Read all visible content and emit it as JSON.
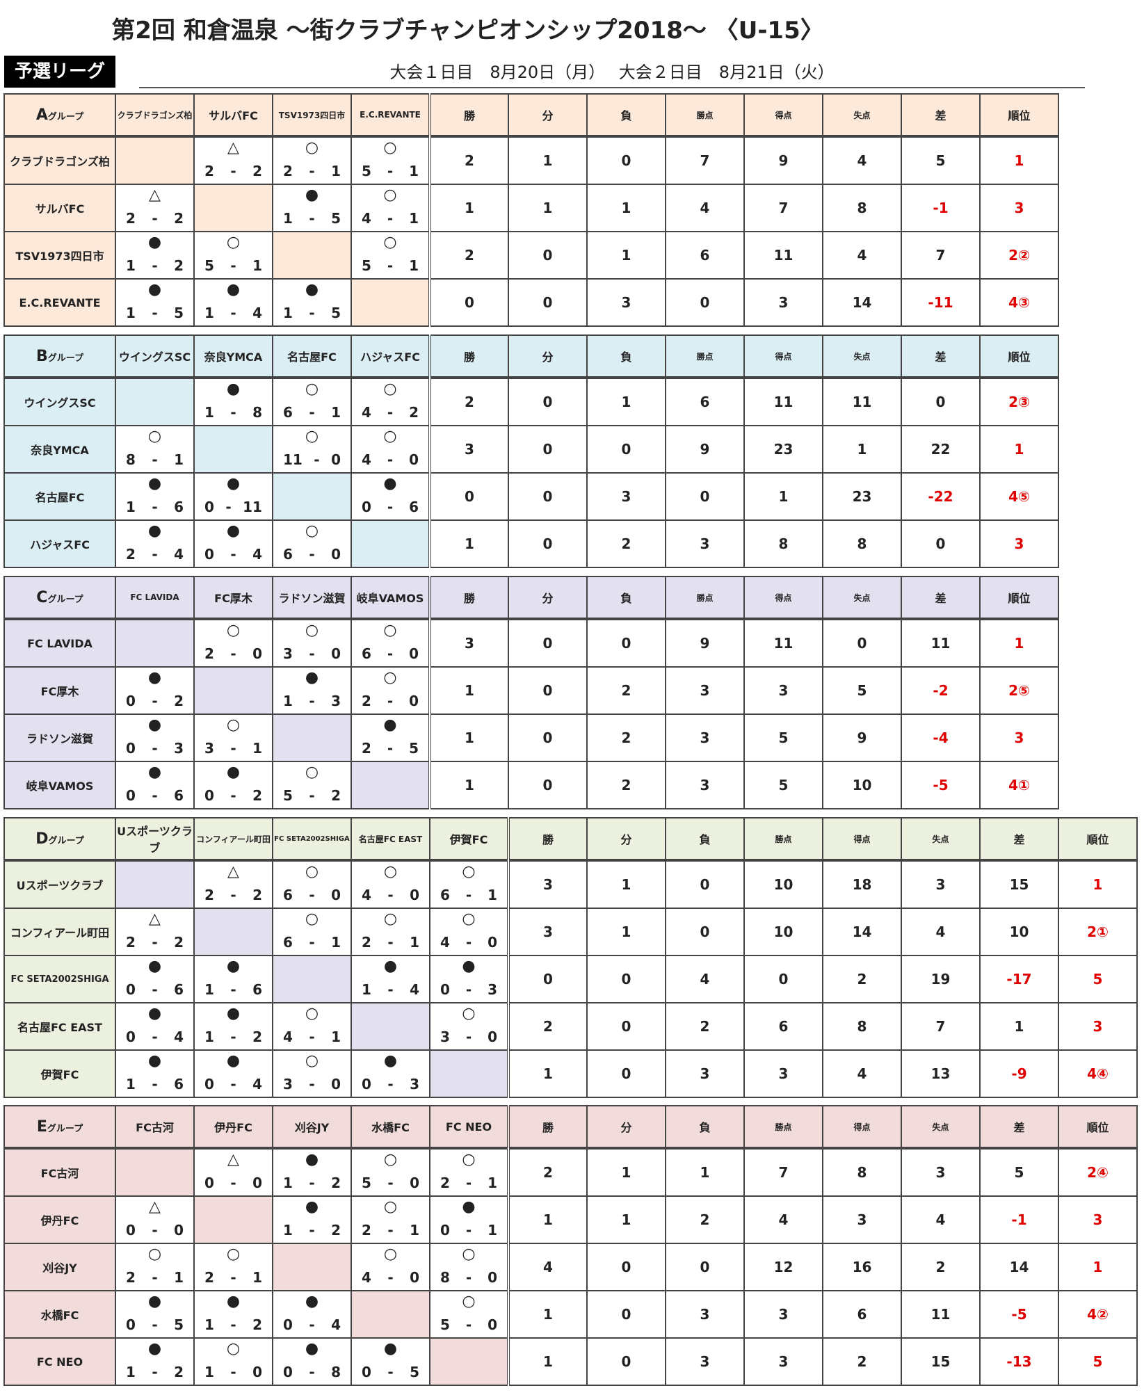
{
  "title": "第2回 和倉温泉 ～街クラブチャンピオンシップ2018～ 〈U-15〉",
  "stage": "予選リーグ",
  "dates": "大会１日目　8月20日（月）　 大会２日目　8月21日（火）",
  "stat_headers": [
    "勝",
    "分",
    "負",
    "勝点",
    "得点",
    "失点",
    "差",
    "順位"
  ],
  "groups": {
    "A": {
      "label": "A",
      "suffix": "グループ",
      "teams": [
        "クラブドラゴンズ柏",
        "サルバFC",
        "TSV1973四日市",
        "E.C.REVANTE"
      ],
      "cells": [
        [
          null,
          {
            "s": "△",
            "a": "2",
            "b": "2"
          },
          {
            "s": "○",
            "a": "2",
            "b": "1"
          },
          {
            "s": "○",
            "a": "5",
            "b": "1"
          }
        ],
        [
          {
            "s": "△",
            "a": "2",
            "b": "2"
          },
          null,
          {
            "s": "●",
            "a": "1",
            "b": "5"
          },
          {
            "s": "○",
            "a": "4",
            "b": "1"
          }
        ],
        [
          {
            "s": "●",
            "a": "1",
            "b": "2"
          },
          {
            "s": "○",
            "a": "5",
            "b": "1"
          },
          null,
          {
            "s": "○",
            "a": "5",
            "b": "1"
          }
        ],
        [
          {
            "s": "●",
            "a": "1",
            "b": "5"
          },
          {
            "s": "●",
            "a": "1",
            "b": "4"
          },
          {
            "s": "●",
            "a": "1",
            "b": "5"
          },
          null
        ]
      ],
      "stats": [
        [
          "2",
          "1",
          "0",
          "7",
          "9",
          "4",
          "5",
          "1"
        ],
        [
          "1",
          "1",
          "1",
          "4",
          "7",
          "8",
          "-1",
          "3"
        ],
        [
          "2",
          "0",
          "1",
          "6",
          "11",
          "4",
          "7",
          "2②"
        ],
        [
          "0",
          "0",
          "3",
          "0",
          "3",
          "14",
          "-11",
          "4③"
        ]
      ]
    },
    "B": {
      "label": "B",
      "suffix": "グループ",
      "teams": [
        "ウイングスSC",
        "奈良YMCA",
        "名古屋FC",
        "ハジャスFC"
      ],
      "cells": [
        [
          null,
          {
            "s": "●",
            "a": "1",
            "b": "8"
          },
          {
            "s": "○",
            "a": "6",
            "b": "1"
          },
          {
            "s": "○",
            "a": "4",
            "b": "2"
          }
        ],
        [
          {
            "s": "○",
            "a": "8",
            "b": "1"
          },
          null,
          {
            "s": "○",
            "a": "11",
            "b": "0"
          },
          {
            "s": "○",
            "a": "4",
            "b": "0"
          }
        ],
        [
          {
            "s": "●",
            "a": "1",
            "b": "6"
          },
          {
            "s": "●",
            "a": "0",
            "b": "11"
          },
          null,
          {
            "s": "●",
            "a": "0",
            "b": "6"
          }
        ],
        [
          {
            "s": "●",
            "a": "2",
            "b": "4"
          },
          {
            "s": "●",
            "a": "0",
            "b": "4"
          },
          {
            "s": "○",
            "a": "6",
            "b": "0"
          },
          null
        ]
      ],
      "stats": [
        [
          "2",
          "0",
          "1",
          "6",
          "11",
          "11",
          "0",
          "2③"
        ],
        [
          "3",
          "0",
          "0",
          "9",
          "23",
          "1",
          "22",
          "1"
        ],
        [
          "0",
          "0",
          "3",
          "0",
          "1",
          "23",
          "-22",
          "4⑤"
        ],
        [
          "1",
          "0",
          "2",
          "3",
          "8",
          "8",
          "0",
          "3"
        ]
      ]
    },
    "C": {
      "label": "C",
      "suffix": "グループ",
      "teams": [
        "FC LAVIDA",
        "FC厚木",
        "ラドソン滋賀",
        "岐阜VAMOS"
      ],
      "cells": [
        [
          null,
          {
            "s": "○",
            "a": "2",
            "b": "0"
          },
          {
            "s": "○",
            "a": "3",
            "b": "0"
          },
          {
            "s": "○",
            "a": "6",
            "b": "0"
          }
        ],
        [
          {
            "s": "●",
            "a": "0",
            "b": "2"
          },
          null,
          {
            "s": "●",
            "a": "1",
            "b": "3"
          },
          {
            "s": "○",
            "a": "2",
            "b": "0"
          }
        ],
        [
          {
            "s": "●",
            "a": "0",
            "b": "3"
          },
          {
            "s": "○",
            "a": "3",
            "b": "1"
          },
          null,
          {
            "s": "●",
            "a": "2",
            "b": "5"
          }
        ],
        [
          {
            "s": "●",
            "a": "0",
            "b": "6"
          },
          {
            "s": "●",
            "a": "0",
            "b": "2"
          },
          {
            "s": "○",
            "a": "5",
            "b": "2"
          },
          null
        ]
      ],
      "stats": [
        [
          "3",
          "0",
          "0",
          "9",
          "11",
          "0",
          "11",
          "1"
        ],
        [
          "1",
          "0",
          "2",
          "3",
          "3",
          "5",
          "-2",
          "2⑤"
        ],
        [
          "1",
          "0",
          "2",
          "3",
          "5",
          "9",
          "-4",
          "3"
        ],
        [
          "1",
          "0",
          "2",
          "3",
          "5",
          "10",
          "-5",
          "4①"
        ]
      ]
    },
    "D": {
      "label": "D",
      "suffix": "グループ",
      "teams": [
        "Uスポーツクラブ",
        "コンフィアール町田",
        "FC SETA2002SHIGA",
        "名古屋FC EAST",
        "伊賀FC"
      ],
      "cells": [
        [
          null,
          {
            "s": "△",
            "a": "2",
            "b": "2"
          },
          {
            "s": "○",
            "a": "6",
            "b": "0"
          },
          {
            "s": "○",
            "a": "4",
            "b": "0"
          },
          {
            "s": "○",
            "a": "6",
            "b": "1"
          }
        ],
        [
          {
            "s": "△",
            "a": "2",
            "b": "2"
          },
          null,
          {
            "s": "○",
            "a": "6",
            "b": "1"
          },
          {
            "s": "○",
            "a": "2",
            "b": "1"
          },
          {
            "s": "○",
            "a": "4",
            "b": "0"
          }
        ],
        [
          {
            "s": "●",
            "a": "0",
            "b": "6"
          },
          {
            "s": "●",
            "a": "1",
            "b": "6"
          },
          null,
          {
            "s": "●",
            "a": "1",
            "b": "4"
          },
          {
            "s": "●",
            "a": "0",
            "b": "3"
          }
        ],
        [
          {
            "s": "●",
            "a": "0",
            "b": "4"
          },
          {
            "s": "●",
            "a": "1",
            "b": "2"
          },
          {
            "s": "○",
            "a": "4",
            "b": "1"
          },
          null,
          {
            "s": "○",
            "a": "3",
            "b": "0"
          }
        ],
        [
          {
            "s": "●",
            "a": "1",
            "b": "6"
          },
          {
            "s": "●",
            "a": "0",
            "b": "4"
          },
          {
            "s": "○",
            "a": "3",
            "b": "0"
          },
          {
            "s": "●",
            "a": "0",
            "b": "3"
          },
          null
        ]
      ],
      "stats": [
        [
          "3",
          "1",
          "0",
          "10",
          "18",
          "3",
          "15",
          "1"
        ],
        [
          "3",
          "1",
          "0",
          "10",
          "14",
          "4",
          "10",
          "2①"
        ],
        [
          "0",
          "0",
          "4",
          "0",
          "2",
          "19",
          "-17",
          "5"
        ],
        [
          "2",
          "0",
          "2",
          "6",
          "8",
          "7",
          "1",
          "3"
        ],
        [
          "1",
          "0",
          "3",
          "3",
          "4",
          "13",
          "-9",
          "4④"
        ]
      ]
    },
    "E": {
      "label": "E",
      "suffix": "グループ",
      "teams": [
        "FC古河",
        "伊丹FC",
        "刈谷JY",
        "水橋FC",
        "FC NEO"
      ],
      "cells": [
        [
          null,
          {
            "s": "△",
            "a": "0",
            "b": "0"
          },
          {
            "s": "●",
            "a": "1",
            "b": "2"
          },
          {
            "s": "○",
            "a": "5",
            "b": "0"
          },
          {
            "s": "○",
            "a": "2",
            "b": "1"
          }
        ],
        [
          {
            "s": "△",
            "a": "0",
            "b": "0"
          },
          null,
          {
            "s": "●",
            "a": "1",
            "b": "2"
          },
          {
            "s": "○",
            "a": "2",
            "b": "1"
          },
          {
            "s": "●",
            "a": "0",
            "b": "1"
          }
        ],
        [
          {
            "s": "○",
            "a": "2",
            "b": "1"
          },
          {
            "s": "○",
            "a": "2",
            "b": "1"
          },
          null,
          {
            "s": "○",
            "a": "4",
            "b": "0"
          },
          {
            "s": "○",
            "a": "8",
            "b": "0"
          }
        ],
        [
          {
            "s": "●",
            "a": "0",
            "b": "5"
          },
          {
            "s": "●",
            "a": "1",
            "b": "2"
          },
          {
            "s": "●",
            "a": "0",
            "b": "4"
          },
          null,
          {
            "s": "○",
            "a": "5",
            "b": "0"
          }
        ],
        [
          {
            "s": "●",
            "a": "1",
            "b": "2"
          },
          {
            "s": "○",
            "a": "1",
            "b": "0"
          },
          {
            "s": "●",
            "a": "0",
            "b": "8"
          },
          {
            "s": "●",
            "a": "0",
            "b": "5"
          },
          null
        ]
      ],
      "stats": [
        [
          "2",
          "1",
          "1",
          "7",
          "8",
          "3",
          "5",
          "2④"
        ],
        [
          "1",
          "1",
          "2",
          "4",
          "3",
          "4",
          "-1",
          "3"
        ],
        [
          "4",
          "0",
          "0",
          "12",
          "16",
          "2",
          "14",
          "1"
        ],
        [
          "1",
          "0",
          "3",
          "3",
          "6",
          "11",
          "-5",
          "4②"
        ],
        [
          "1",
          "0",
          "3",
          "3",
          "2",
          "15",
          "-13",
          "5"
        ]
      ]
    }
  }
}
